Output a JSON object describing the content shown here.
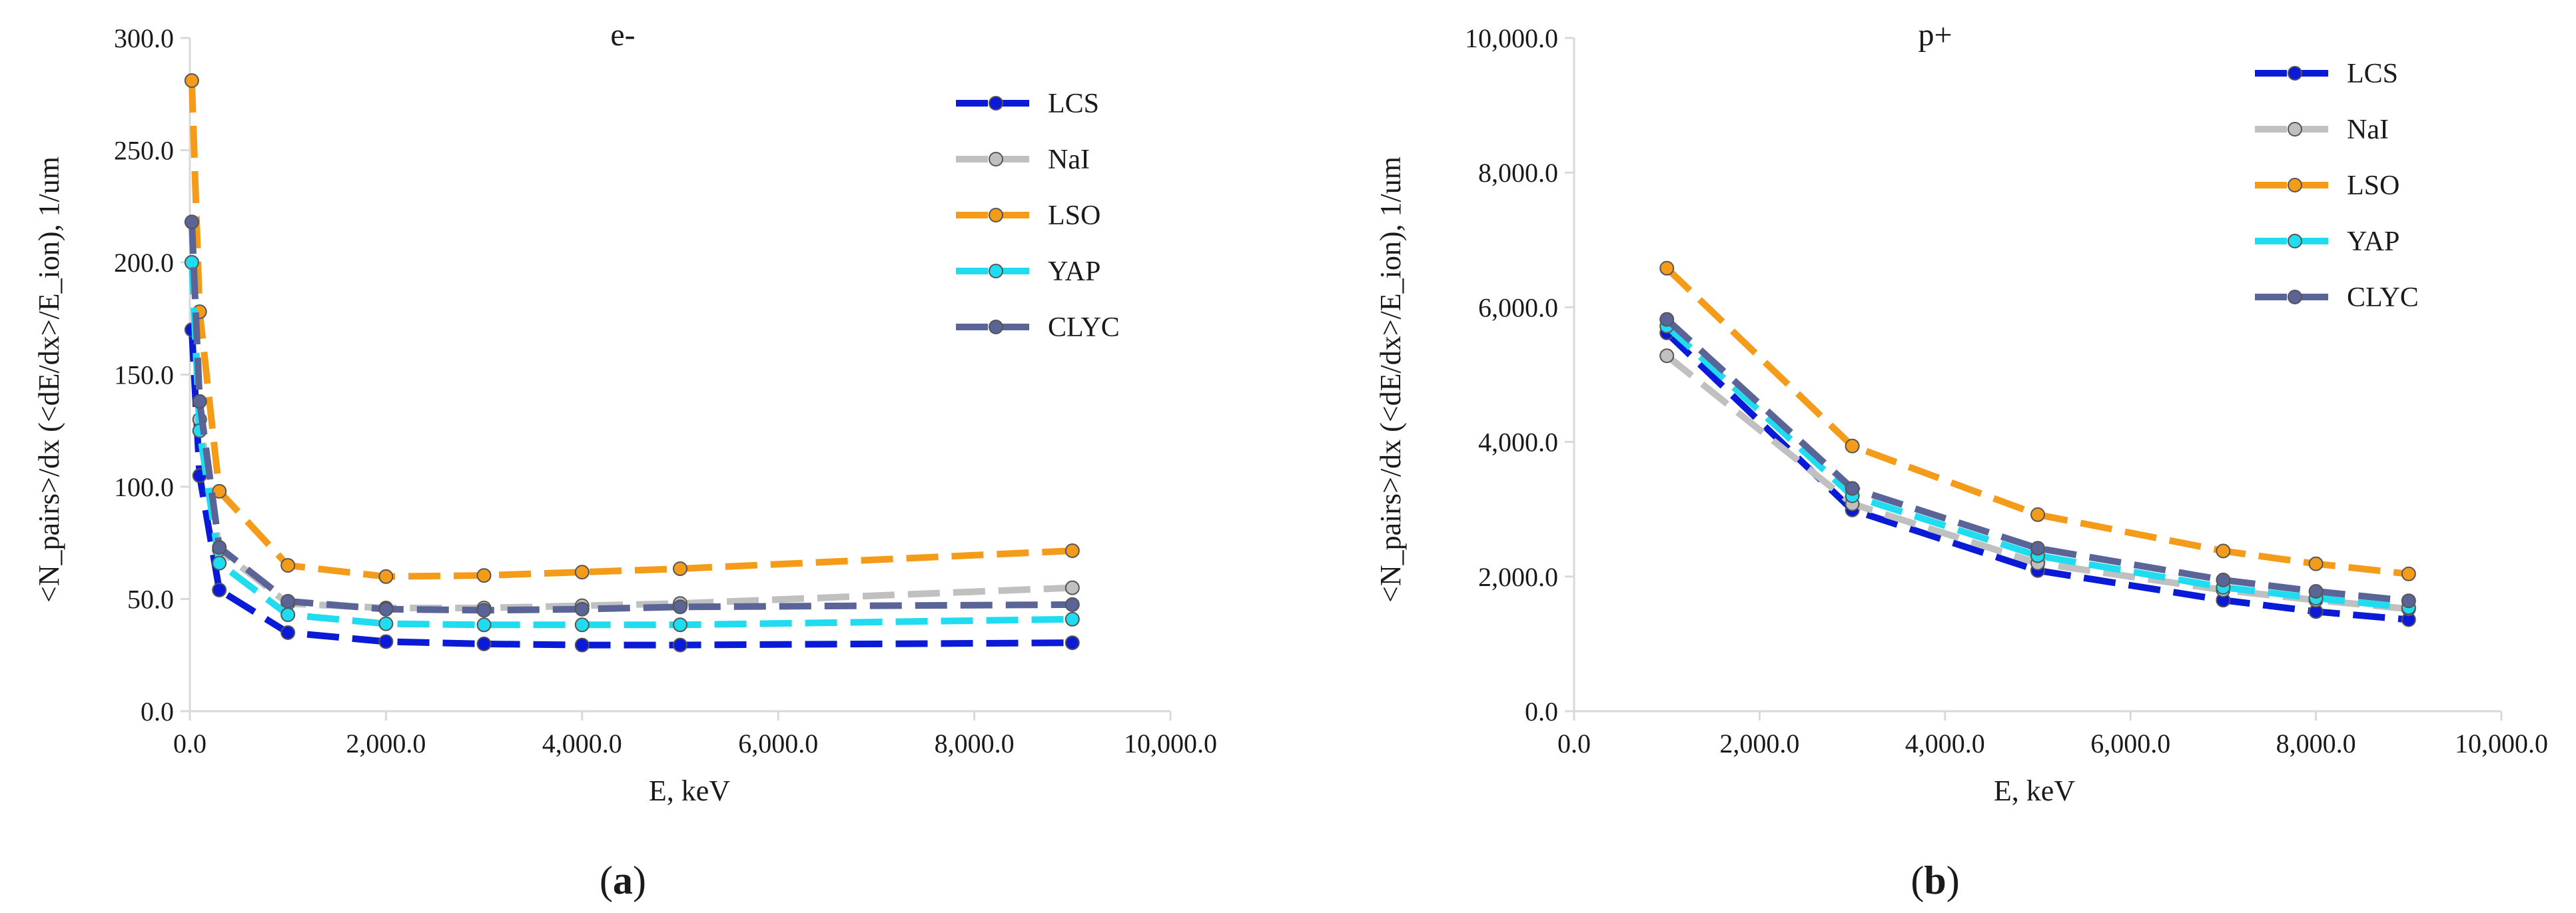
{
  "chart_data": [
    {
      "type": "line",
      "title": "e-",
      "xlabel": "E, keV",
      "ylabel": "<N_pairs>/dx   (<dE/dx>/E_ion), 1/um",
      "xlim": [
        0,
        10000
      ],
      "ylim": [
        0,
        300
      ],
      "x_ticks": [
        "0.0",
        "2,000.0",
        "4,000.0",
        "6,000.0",
        "8,000.0",
        "10,000.0"
      ],
      "y_ticks": [
        "0.0",
        "50.0",
        "100.0",
        "150.0",
        "200.0",
        "250.0",
        "300.0"
      ],
      "x_tick_values": [
        0,
        2000,
        4000,
        6000,
        8000,
        10000
      ],
      "y_tick_values": [
        0,
        50,
        100,
        150,
        200,
        250,
        300
      ],
      "legend_position": "top-right",
      "panel_label": "a",
      "series": [
        {
          "name": "LCS",
          "color": "#0a1ad6",
          "x": [
            20,
            100,
            300,
            1000,
            2000,
            3000,
            4000,
            5000,
            9000
          ],
          "values": [
            170,
            105,
            54,
            35,
            31,
            30,
            29.5,
            29.5,
            30.5
          ]
        },
        {
          "name": "NaI",
          "color": "#c0c0c0",
          "x": [
            20,
            100,
            300,
            1000,
            2000,
            3000,
            4000,
            5000,
            9000
          ],
          "values": [
            200,
            130,
            72,
            48,
            46,
            46,
            47,
            48,
            55
          ]
        },
        {
          "name": "LSO",
          "color": "#f59b1a",
          "x": [
            20,
            100,
            300,
            1000,
            2000,
            3000,
            4000,
            5000,
            9000
          ],
          "values": [
            281,
            178,
            98,
            65,
            60,
            60.5,
            62,
            63.5,
            71.5
          ]
        },
        {
          "name": "YAP",
          "color": "#1fdcf0",
          "x": [
            20,
            100,
            300,
            1000,
            2000,
            3000,
            4000,
            5000,
            9000
          ],
          "values": [
            200,
            125,
            66,
            43,
            39,
            38.5,
            38.5,
            38.5,
            41
          ]
        },
        {
          "name": "CLYC",
          "color": "#5a6496",
          "x": [
            20,
            100,
            300,
            1000,
            2000,
            3000,
            4000,
            5000,
            9000
          ],
          "values": [
            218,
            138,
            73,
            49,
            45.5,
            45,
            45.5,
            46.5,
            47.5
          ]
        }
      ]
    },
    {
      "type": "line",
      "title": "p+",
      "xlabel": "E, keV",
      "ylabel": "<N_pairs>/dx   (<dE/dx>/E_ion), 1/um",
      "xlim": [
        0,
        10000
      ],
      "ylim": [
        0,
        10000
      ],
      "x_ticks": [
        "0.0",
        "2,000.0",
        "4,000.0",
        "6,000.0",
        "8,000.0",
        "10,000.0"
      ],
      "y_ticks": [
        "0.0",
        "2,000.0",
        "4,000.0",
        "6,000.0",
        "8,000.0",
        "10,000.0"
      ],
      "x_tick_values": [
        0,
        2000,
        4000,
        6000,
        8000,
        10000
      ],
      "y_tick_values": [
        0,
        2000,
        4000,
        6000,
        8000,
        10000
      ],
      "legend_position": "top-right",
      "panel_label": "b",
      "series": [
        {
          "name": "LCS",
          "color": "#0a1ad6",
          "x": [
            1000,
            3000,
            5000,
            7000,
            8000,
            9000
          ],
          "values": [
            5620,
            2990,
            2090,
            1650,
            1480,
            1360
          ]
        },
        {
          "name": "NaI",
          "color": "#c0c0c0",
          "x": [
            1000,
            3000,
            5000,
            7000,
            8000,
            9000
          ],
          "values": [
            5280,
            3080,
            2200,
            1800,
            1650,
            1520
          ]
        },
        {
          "name": "LSO",
          "color": "#f59b1a",
          "x": [
            1000,
            3000,
            5000,
            7000,
            8000,
            9000
          ],
          "values": [
            6580,
            3940,
            2920,
            2380,
            2190,
            2040
          ]
        },
        {
          "name": "YAP",
          "color": "#1fdcf0",
          "x": [
            1000,
            3000,
            5000,
            7000,
            8000,
            9000
          ],
          "values": [
            5720,
            3200,
            2310,
            1840,
            1680,
            1540
          ]
        },
        {
          "name": "CLYC",
          "color": "#5a6496",
          "x": [
            1000,
            3000,
            5000,
            7000,
            8000,
            9000
          ],
          "values": [
            5820,
            3310,
            2420,
            1950,
            1780,
            1640
          ]
        }
      ]
    }
  ]
}
